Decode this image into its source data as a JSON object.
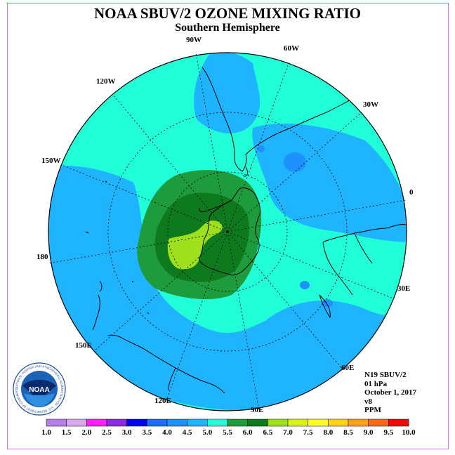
{
  "header": {
    "title": "NOAA SBUV/2 OZONE MIXING RATIO",
    "subtitle": "Southern Hemisphere"
  },
  "longitude_labels": [
    "90W",
    "60W",
    "120W",
    "30W",
    "150W",
    "0",
    "180",
    "30E",
    "150E",
    "60E",
    "120E",
    "90E"
  ],
  "info": {
    "instrument": "N19 SBUV/2",
    "level": "01 hPa",
    "date": "October 1, 2017",
    "version": "v8",
    "units": "PPM"
  },
  "colorbar": {
    "ticks": [
      "1.0",
      "1.5",
      "2.0",
      "2.5",
      "3.0",
      "3.5",
      "4.0",
      "4.5",
      "5.0",
      "5.5",
      "6.0",
      "6.5",
      "7.0",
      "7.5",
      "8.0",
      "8.5",
      "9.0",
      "9.5",
      "10.0"
    ],
    "colors": [
      "#b57ee8",
      "#d8a8ee",
      "#ff22ff",
      "#8a2be2",
      "#0000ff",
      "#1e6dff",
      "#1e90ff",
      "#1fb4ff",
      "#21ffd9",
      "#1e9b3c",
      "#0e7a1e",
      "#9de01b",
      "#d9f21b",
      "#ffff1d",
      "#fcd21b",
      "#f9a11a",
      "#f96c16",
      "#ff0000",
      "#7a4a2a",
      "#8b5a3c"
    ]
  },
  "map_colors": {
    "level_4_0": "#1e90ff",
    "level_4_5": "#1fb4ff",
    "level_5_0": "#21ffd9",
    "level_5_5": "#1e9b3c",
    "level_6_0": "#0e7a1e",
    "level_6_5": "#9de01b"
  },
  "logo": {
    "text": "NOAA",
    "ring_text": "NATIONAL OCEANIC AND ATMOSPHERIC ADMINISTRATION · U.S. DEPARTMENT OF COMMERCE"
  }
}
